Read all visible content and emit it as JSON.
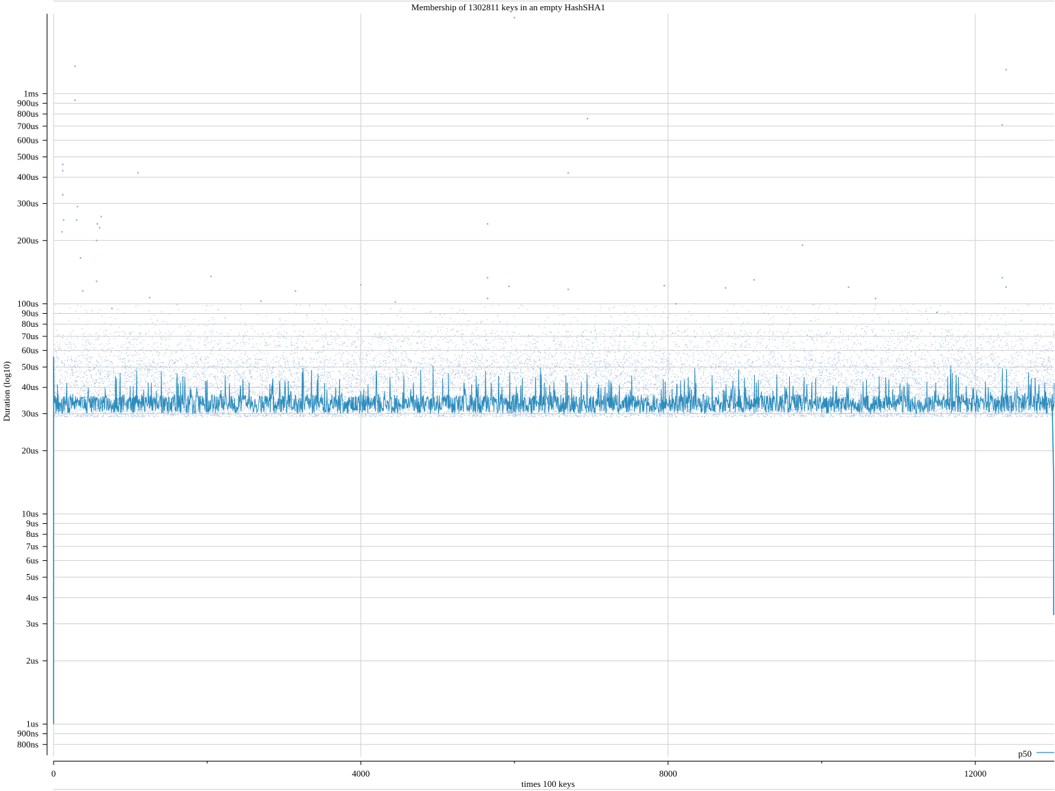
{
  "chart_data": {
    "type": "scatter",
    "title": "Membership of 1302811 keys in an empty HashSHA1",
    "xlabel": "times 100 keys",
    "ylabel": "Duration (log10)",
    "x_scale": "linear",
    "y_scale": "log10",
    "xlim": [
      0,
      13028
    ],
    "ylim_seconds": [
      7e-07,
      0.0024
    ],
    "x_ticks": [
      {
        "value": 0,
        "label": "0"
      },
      {
        "value": 4000,
        "label": "4000"
      },
      {
        "value": 8000,
        "label": "8000"
      },
      {
        "value": 12000,
        "label": "12000"
      }
    ],
    "x_minor_ticks": [
      2000,
      6000,
      10000
    ],
    "y_ticks": [
      {
        "value": 8e-07,
        "label": "800ns"
      },
      {
        "value": 9e-07,
        "label": "900ns"
      },
      {
        "value": 1e-06,
        "label": "1us"
      },
      {
        "value": 2e-06,
        "label": "2us"
      },
      {
        "value": 3e-06,
        "label": "3us"
      },
      {
        "value": 4e-06,
        "label": "4us"
      },
      {
        "value": 5e-06,
        "label": "5us"
      },
      {
        "value": 6e-06,
        "label": "6us"
      },
      {
        "value": 7e-06,
        "label": "7us"
      },
      {
        "value": 8e-06,
        "label": "8us"
      },
      {
        "value": 9e-06,
        "label": "9us"
      },
      {
        "value": 1e-05,
        "label": "10us"
      },
      {
        "value": 2e-05,
        "label": "20us"
      },
      {
        "value": 3e-05,
        "label": "30us"
      },
      {
        "value": 4e-05,
        "label": "40us"
      },
      {
        "value": 5e-05,
        "label": "50us"
      },
      {
        "value": 6e-05,
        "label": "60us"
      },
      {
        "value": 7e-05,
        "label": "70us"
      },
      {
        "value": 8e-05,
        "label": "80us"
      },
      {
        "value": 9e-05,
        "label": "90us"
      },
      {
        "value": 0.0001,
        "label": "100us"
      },
      {
        "value": 0.0002,
        "label": "200us"
      },
      {
        "value": 0.0003,
        "label": "300us"
      },
      {
        "value": 0.0004,
        "label": "400us"
      },
      {
        "value": 0.0005,
        "label": "500us"
      },
      {
        "value": 0.0006,
        "label": "600us"
      },
      {
        "value": 0.0007,
        "label": "700us"
      },
      {
        "value": 0.0008,
        "label": "800us"
      },
      {
        "value": 0.0009,
        "label": "900us"
      },
      {
        "value": 0.001,
        "label": "1ms"
      }
    ],
    "grid": true,
    "legend_position": "bottom-right",
    "series": [
      {
        "name": "p50",
        "style": "line",
        "color": "#2b8cbe",
        "typical_seconds": 3.3e-05,
        "band_seconds": [
          3e-05,
          4e-05
        ],
        "end_drop_seconds": [
          3.3e-06,
          1.5e-05
        ]
      },
      {
        "style": "points",
        "color": "#a6bddb",
        "typical_band_seconds": [
          2.9e-05,
          5.5e-05
        ],
        "outliers": [
          {
            "x": 280,
            "y": 0.00135
          },
          {
            "x": 280,
            "y": 0.00093
          },
          {
            "x": 6000,
            "y": 0.0023
          },
          {
            "x": 6950,
            "y": 0.00076
          },
          {
            "x": 12400,
            "y": 0.0013
          },
          {
            "x": 12350,
            "y": 0.00071
          },
          {
            "x": 120,
            "y": 0.00046
          },
          {
            "x": 120,
            "y": 0.00043
          },
          {
            "x": 1100,
            "y": 0.00042
          },
          {
            "x": 6700,
            "y": 0.00042
          },
          {
            "x": 120,
            "y": 0.00033
          },
          {
            "x": 310,
            "y": 0.00029
          },
          {
            "x": 620,
            "y": 0.00026
          },
          {
            "x": 130,
            "y": 0.00025
          },
          {
            "x": 300,
            "y": 0.00025
          },
          {
            "x": 570,
            "y": 0.00024
          },
          {
            "x": 5650,
            "y": 0.00024
          },
          {
            "x": 110,
            "y": 0.00022
          },
          {
            "x": 600,
            "y": 0.00023
          },
          {
            "x": 560,
            "y": 0.0002
          },
          {
            "x": 9750,
            "y": 0.00019
          },
          {
            "x": 350,
            "y": 0.000165
          },
          {
            "x": 560,
            "y": 0.000128
          },
          {
            "x": 2050,
            "y": 0.000135
          },
          {
            "x": 5650,
            "y": 0.000133
          },
          {
            "x": 12350,
            "y": 0.000133
          },
          {
            "x": 4000,
            "y": 0.000123
          },
          {
            "x": 5930,
            "y": 0.000121
          },
          {
            "x": 6700,
            "y": 0.000117
          },
          {
            "x": 7950,
            "y": 0.000122
          },
          {
            "x": 8750,
            "y": 0.000119
          },
          {
            "x": 9120,
            "y": 0.00013
          },
          {
            "x": 10350,
            "y": 0.00012
          },
          {
            "x": 12400,
            "y": 0.00012
          },
          {
            "x": 3150,
            "y": 0.000115
          },
          {
            "x": 380,
            "y": 0.000115
          },
          {
            "x": 1250,
            "y": 0.000107
          },
          {
            "x": 5650,
            "y": 0.000106
          },
          {
            "x": 10700,
            "y": 0.000106
          },
          {
            "x": 4450,
            "y": 0.000102
          },
          {
            "x": 2700,
            "y": 0.000103
          },
          {
            "x": 8100,
            "y": 0.0001
          },
          {
            "x": 11500,
            "y": 9.1e-05
          },
          {
            "x": 760,
            "y": 9.5e-05
          }
        ]
      }
    ]
  }
}
